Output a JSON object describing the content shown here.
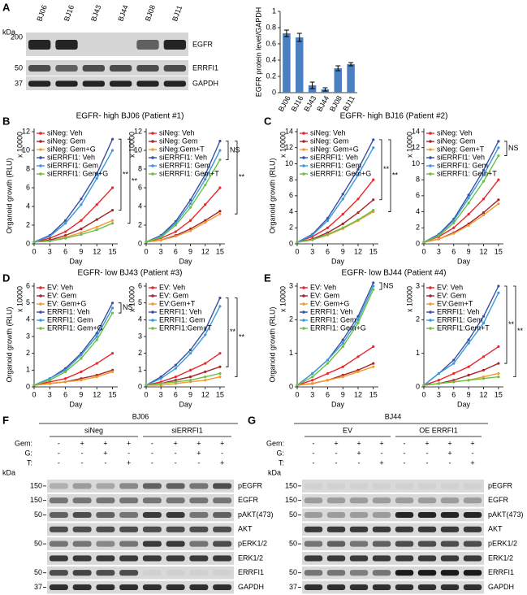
{
  "panel_a": {
    "letter": "A",
    "kda": "kDa",
    "lanes": [
      "BJ06",
      "BJ16",
      "BJ43",
      "BJ44",
      "BJ08",
      "BJ11"
    ],
    "rows": [
      {
        "kda": "200",
        "label": "EGFR"
      },
      {
        "kda": "50",
        "label": "ERRFI1"
      },
      {
        "kda": "37",
        "label": "GAPDH"
      }
    ]
  },
  "line_panels": [
    {
      "letter": "B",
      "title": "EGFR- high BJ06 (Patient #1)"
    },
    {
      "letter": "C",
      "title": "EGFR- high BJ16 (Patient #2)"
    },
    {
      "letter": "D",
      "title": "EGFR- low BJ43 (Patient #3)"
    },
    {
      "letter": "E",
      "title": "EGFR- low BJ44 (Patient #4)"
    }
  ],
  "chart_data": [
    {
      "type": "bar",
      "ylabel": "EGFR protein level/GAPDH",
      "categories": [
        "BJ06",
        "BJ16",
        "BJ43",
        "BJ44",
        "BJ08",
        "BJ11"
      ],
      "values": [
        0.73,
        0.68,
        0.09,
        0.04,
        0.3,
        0.35
      ],
      "errors": [
        0.04,
        0.05,
        0.04,
        0.02,
        0.03,
        0.02
      ],
      "color": "#4a7fc1",
      "ylim": [
        0,
        1
      ],
      "yticks": [
        0,
        0.2,
        0.4,
        0.6,
        0.8,
        1
      ]
    },
    {
      "type": "line",
      "ylabel": "Organoid growth (RLU)",
      "multiplier": "x 10000",
      "xlabel": "Day",
      "x": [
        0,
        3,
        6,
        9,
        12,
        15
      ],
      "xlim": [
        0,
        16
      ],
      "xticks": [
        0,
        3,
        6,
        9,
        12,
        15
      ],
      "ylim": [
        0,
        12
      ],
      "yticks": [
        0,
        2,
        4,
        6,
        8,
        10,
        12
      ],
      "annotations": [
        "**",
        "**"
      ],
      "series": [
        {
          "name": "siNeg: Veh",
          "color": "#e8262b",
          "values": [
            0.2,
            0.6,
            1.3,
            2.5,
            4.2,
            6.0
          ]
        },
        {
          "name": "siNeg: Gem",
          "color": "#a0282c",
          "values": [
            0.2,
            0.4,
            0.9,
            1.6,
            2.6,
            3.6
          ]
        },
        {
          "name": "siNeg: Gem+G",
          "color": "#f29a36",
          "values": [
            0.2,
            0.3,
            0.7,
            1.2,
            1.8,
            2.5
          ]
        },
        {
          "name": "siERRFI1: Veh",
          "color": "#3b4fa0",
          "values": [
            0.2,
            0.9,
            2.5,
            4.8,
            7.5,
            11.2
          ]
        },
        {
          "name": "siERRFI1: Gem",
          "color": "#3a9ad9",
          "values": [
            0.2,
            0.8,
            2.2,
            4.2,
            7.0,
            10.0
          ]
        },
        {
          "name": "siERRFI1: Gem+G",
          "color": "#6abf45",
          "values": [
            0.2,
            0.3,
            0.6,
            1.0,
            1.5,
            2.2
          ]
        }
      ]
    },
    {
      "type": "line",
      "multiplier": "x 10000",
      "xlabel": "Day",
      "x": [
        0,
        3,
        6,
        9,
        12,
        15
      ],
      "xlim": [
        0,
        16
      ],
      "xticks": [
        0,
        3,
        6,
        9,
        12,
        15
      ],
      "ylim": [
        0,
        12
      ],
      "yticks": [
        0,
        2,
        4,
        6,
        8,
        10,
        12
      ],
      "annotations": [
        "NS",
        "**"
      ],
      "series": [
        {
          "name": "siNeg: Veh",
          "color": "#e8262b",
          "values": [
            0.2,
            0.6,
            1.3,
            2.5,
            4.2,
            6.0
          ]
        },
        {
          "name": "siNeg: Gem",
          "color": "#a0282c",
          "values": [
            0.2,
            0.4,
            0.9,
            1.6,
            2.5,
            3.5
          ]
        },
        {
          "name": "siNeg:Gem+T",
          "color": "#f29a36",
          "values": [
            0.2,
            0.4,
            0.8,
            1.4,
            2.3,
            3.2
          ]
        },
        {
          "name": "siERRFI1: Veh",
          "color": "#3b4fa0",
          "values": [
            0.2,
            0.9,
            2.4,
            4.7,
            7.4,
            11.0
          ]
        },
        {
          "name": "siERRFI1: Gem",
          "color": "#3a9ad9",
          "values": [
            0.2,
            0.8,
            2.2,
            4.3,
            6.9,
            10.0
          ]
        },
        {
          "name": "siERRFI1: Gem+T",
          "color": "#6abf45",
          "values": [
            0.2,
            0.7,
            2.0,
            3.9,
            6.3,
            9.0
          ]
        }
      ]
    },
    {
      "type": "line",
      "ylabel": "Organoid growth (RLU)",
      "multiplier": "x 10000",
      "xlabel": "Day",
      "x": [
        0,
        3,
        6,
        9,
        12,
        15
      ],
      "xlim": [
        0,
        16
      ],
      "xticks": [
        0,
        3,
        6,
        9,
        12,
        15
      ],
      "ylim": [
        0,
        14
      ],
      "yticks": [
        0,
        2,
        4,
        6,
        8,
        10,
        12,
        14
      ],
      "annotations": [
        "**",
        "**"
      ],
      "series": [
        {
          "name": "siNeg: Veh",
          "color": "#e8262b",
          "values": [
            0.2,
            0.9,
            2.0,
            3.7,
            5.6,
            8.0
          ]
        },
        {
          "name": "siNeg: Gem",
          "color": "#a0282c",
          "values": [
            0.2,
            0.6,
            1.4,
            2.5,
            3.9,
            5.5
          ]
        },
        {
          "name": "siNeg: Gem+G",
          "color": "#f29a36",
          "values": [
            0.2,
            0.5,
            1.1,
            1.9,
            2.9,
            4.0
          ]
        },
        {
          "name": "siERRFI1: Veh",
          "color": "#3b4fa0",
          "values": [
            0.2,
            1.2,
            3.2,
            6.2,
            9.3,
            13.0
          ]
        },
        {
          "name": "siERRFI1: Gem",
          "color": "#3a9ad9",
          "values": [
            0.2,
            1.1,
            2.9,
            5.6,
            8.6,
            12.0
          ]
        },
        {
          "name": "siERRFI1: Gem+G",
          "color": "#6abf45",
          "values": [
            0.2,
            0.5,
            1.2,
            2.0,
            3.0,
            4.2
          ]
        }
      ]
    },
    {
      "type": "line",
      "multiplier": "x 10000",
      "xlabel": "Day",
      "x": [
        0,
        3,
        6,
        9,
        12,
        15
      ],
      "xlim": [
        0,
        16
      ],
      "xticks": [
        0,
        3,
        6,
        9,
        12,
        15
      ],
      "ylim": [
        0,
        14
      ],
      "yticks": [
        0,
        2,
        4,
        6,
        8,
        10,
        12,
        14
      ],
      "annotations": [
        "NS"
      ],
      "series": [
        {
          "name": "siNeg: Veh",
          "color": "#e8262b",
          "values": [
            0.2,
            0.9,
            2.0,
            3.7,
            5.6,
            8.0
          ]
        },
        {
          "name": "siNeg: Gem",
          "color": "#a0282c",
          "values": [
            0.2,
            0.6,
            1.4,
            2.5,
            3.9,
            5.5
          ]
        },
        {
          "name": "siNeg: Gem+T",
          "color": "#f29a36",
          "values": [
            0.2,
            0.6,
            1.3,
            2.3,
            3.6,
            5.0
          ]
        },
        {
          "name": "siERRFI1: Veh",
          "color": "#3b4fa0",
          "values": [
            0.2,
            1.2,
            3.1,
            6.1,
            9.2,
            12.8
          ]
        },
        {
          "name": "siERRFI1: Gem",
          "color": "#3a9ad9",
          "values": [
            0.2,
            1.1,
            2.9,
            5.7,
            8.6,
            12.0
          ]
        },
        {
          "name": "siERRFI1: Gem+T",
          "color": "#6abf45",
          "values": [
            0.2,
            1.0,
            2.6,
            5.1,
            7.8,
            11.0
          ]
        }
      ]
    },
    {
      "type": "line",
      "ylabel": "Organoid growth (RLU)",
      "multiplier": "x 10000",
      "xlabel": "Day",
      "x": [
        0,
        3,
        6,
        9,
        12,
        15
      ],
      "xlim": [
        0,
        16
      ],
      "xticks": [
        0,
        3,
        6,
        9,
        12,
        15
      ],
      "ylim": [
        0,
        6
      ],
      "yticks": [
        0,
        1,
        2,
        3,
        4,
        5,
        6
      ],
      "annotations": [
        "NS"
      ],
      "series": [
        {
          "name": "EV: Veh",
          "color": "#e8262b",
          "values": [
            0.1,
            0.3,
            0.5,
            0.9,
            1.4,
            2.0
          ]
        },
        {
          "name": "EV: Gem",
          "color": "#a0282c",
          "values": [
            0.1,
            0.2,
            0.3,
            0.5,
            0.7,
            1.0
          ]
        },
        {
          "name": "EV: Gem+G",
          "color": "#f29a36",
          "values": [
            0.1,
            0.2,
            0.3,
            0.4,
            0.6,
            0.9
          ]
        },
        {
          "name": "ERRFI1: Veh",
          "color": "#3b4fa0",
          "values": [
            0.1,
            0.5,
            1.1,
            2.0,
            3.2,
            5.0
          ]
        },
        {
          "name": "ERRFI1: Gem",
          "color": "#3a9ad9",
          "values": [
            0.1,
            0.5,
            1.0,
            1.9,
            3.0,
            4.7
          ]
        },
        {
          "name": "ERRFI1: Gem+G",
          "color": "#6abf45",
          "values": [
            0.1,
            0.4,
            0.9,
            1.7,
            2.8,
            4.4
          ]
        }
      ]
    },
    {
      "type": "line",
      "multiplier": "x 10000",
      "xlabel": "Day",
      "x": [
        0,
        3,
        6,
        9,
        12,
        15
      ],
      "xlim": [
        0,
        16
      ],
      "xticks": [
        0,
        3,
        6,
        9,
        12,
        15
      ],
      "ylim": [
        0,
        6
      ],
      "yticks": [
        0,
        1,
        2,
        3,
        4,
        5,
        6
      ],
      "annotations": [
        "**",
        "**"
      ],
      "series": [
        {
          "name": "EV: Veh",
          "color": "#e8262b",
          "values": [
            0.1,
            0.3,
            0.6,
            1.0,
            1.4,
            2.0
          ]
        },
        {
          "name": "EV: Gem",
          "color": "#a0282c",
          "values": [
            0.1,
            0.2,
            0.4,
            0.6,
            0.9,
            1.2
          ]
        },
        {
          "name": "EV:Gem+T",
          "color": "#f29a36",
          "values": [
            0.1,
            0.1,
            0.2,
            0.3,
            0.4,
            0.6
          ]
        },
        {
          "name": "ERRFI1: Veh",
          "color": "#3b4fa0",
          "values": [
            0.1,
            0.6,
            1.3,
            2.2,
            3.4,
            5.3
          ]
        },
        {
          "name": "ERRFI1: Gem",
          "color": "#3a9ad9",
          "values": [
            0.1,
            0.5,
            1.1,
            2.0,
            3.1,
            4.8
          ]
        },
        {
          "name": "ERRFI1:Gem+T",
          "color": "#6abf45",
          "values": [
            0.1,
            0.2,
            0.3,
            0.4,
            0.6,
            0.8
          ]
        }
      ]
    },
    {
      "type": "line",
      "ylabel": "Organoid growth (RLU)",
      "multiplier": "x 10000",
      "xlabel": "Day",
      "x": [
        0,
        3,
        6,
        9,
        12,
        15
      ],
      "xlim": [
        0,
        16
      ],
      "xticks": [
        0,
        3,
        6,
        9,
        12,
        15
      ],
      "ylim": [
        0,
        3
      ],
      "yticks": [
        0,
        1,
        2,
        3
      ],
      "annotations": [
        "NS"
      ],
      "series": [
        {
          "name": "EV: Veh",
          "color": "#e8262b",
          "values": [
            0.05,
            0.2,
            0.4,
            0.6,
            0.9,
            1.2
          ]
        },
        {
          "name": "EV: Gem",
          "color": "#a0282c",
          "values": [
            0.05,
            0.1,
            0.2,
            0.35,
            0.5,
            0.7
          ]
        },
        {
          "name": "EV: Gem+G",
          "color": "#f29a36",
          "values": [
            0.05,
            0.1,
            0.2,
            0.3,
            0.45,
            0.6
          ]
        },
        {
          "name": "ERRFI1: Veh",
          "color": "#3b4fa0",
          "values": [
            0.05,
            0.4,
            0.8,
            1.4,
            2.1,
            3.1
          ]
        },
        {
          "name": "ERRFI1: Gem",
          "color": "#3a9ad9",
          "values": [
            0.05,
            0.4,
            0.8,
            1.3,
            2.0,
            3.0
          ]
        },
        {
          "name": "ERRFI1: Gem+G",
          "color": "#6abf45",
          "values": [
            0.05,
            0.3,
            0.7,
            1.2,
            1.9,
            2.9
          ]
        }
      ]
    },
    {
      "type": "line",
      "multiplier": "x 10000",
      "xlabel": "Day",
      "x": [
        0,
        3,
        6,
        9,
        12,
        15
      ],
      "xlim": [
        0,
        16
      ],
      "xticks": [
        0,
        3,
        6,
        9,
        12,
        15
      ],
      "ylim": [
        0,
        3
      ],
      "yticks": [
        0,
        1,
        2,
        3
      ],
      "annotations": [
        "**",
        "**"
      ],
      "series": [
        {
          "name": "EV: Veh",
          "color": "#e8262b",
          "values": [
            0.05,
            0.2,
            0.4,
            0.6,
            0.9,
            1.2
          ]
        },
        {
          "name": "EV: Gem",
          "color": "#a0282c",
          "values": [
            0.05,
            0.1,
            0.2,
            0.35,
            0.5,
            0.7
          ]
        },
        {
          "name": "EV:Gem+T",
          "color": "#f29a36",
          "values": [
            0.05,
            0.1,
            0.15,
            0.2,
            0.3,
            0.4
          ]
        },
        {
          "name": "ERRFI1: Veh",
          "color": "#3b4fa0",
          "values": [
            0.05,
            0.4,
            0.8,
            1.4,
            2.1,
            3.0
          ]
        },
        {
          "name": "ERRFI1: Gem",
          "color": "#3a9ad9",
          "values": [
            0.05,
            0.4,
            0.7,
            1.3,
            1.9,
            2.8
          ]
        },
        {
          "name": "ERRFI1:Gem+T",
          "color": "#6abf45",
          "values": [
            0.05,
            0.1,
            0.15,
            0.2,
            0.25,
            0.3
          ]
        }
      ]
    }
  ],
  "panel_f": {
    "letter": "F",
    "cell": "BJ06",
    "groups": [
      "siNeg",
      "siERRFI1"
    ],
    "kda": "kDa",
    "treatments": [
      {
        "name": "Gem:",
        "signs": [
          "-",
          "+",
          "+",
          "+",
          "-",
          "+",
          "+",
          "+"
        ]
      },
      {
        "name": "G:",
        "signs": [
          "-",
          "-",
          "+",
          "-",
          "-",
          "-",
          "+",
          "-"
        ]
      },
      {
        "name": "T:",
        "signs": [
          "-",
          "-",
          "-",
          "+",
          "-",
          "-",
          "-",
          "+"
        ]
      }
    ],
    "rows": [
      {
        "kda": "150",
        "label": "pEGFR"
      },
      {
        "kda": "150",
        "label": "EGFR"
      },
      {
        "kda": "50",
        "label": "pAKT(473)"
      },
      {
        "label": "AKT"
      },
      {
        "kda": "50",
        "label": "pERK1/2"
      },
      {
        "label": "ERK1/2"
      },
      {
        "kda": "50",
        "label": "ERRFI1"
      },
      {
        "kda": "37",
        "label": "GAPDH"
      }
    ]
  },
  "panel_g": {
    "letter": "G",
    "cell": "BJ44",
    "groups": [
      "EV",
      "OE ERRFI1"
    ],
    "kda": "kDa",
    "treatments": [
      {
        "name": "Gem:",
        "signs": [
          "-",
          "+",
          "+",
          "+",
          "-",
          "+",
          "+",
          "+"
        ]
      },
      {
        "name": "G:",
        "signs": [
          "-",
          "-",
          "+",
          "-",
          "-",
          "-",
          "+",
          "-"
        ]
      },
      {
        "name": "T:",
        "signs": [
          "-",
          "-",
          "-",
          "+",
          "-",
          "-",
          "-",
          "+"
        ]
      }
    ],
    "rows": [
      {
        "kda": "150",
        "label": "pEGFR"
      },
      {
        "kda": "150",
        "label": "EGFR"
      },
      {
        "kda": "50",
        "label": "pAKT(473)"
      },
      {
        "label": "AKT"
      },
      {
        "kda": "50",
        "label": "pERK1/2"
      },
      {
        "label": "ERK1/2"
      },
      {
        "kda": "50",
        "label": "ERRFI1"
      },
      {
        "kda": "37",
        "label": "GAPDH"
      }
    ]
  }
}
